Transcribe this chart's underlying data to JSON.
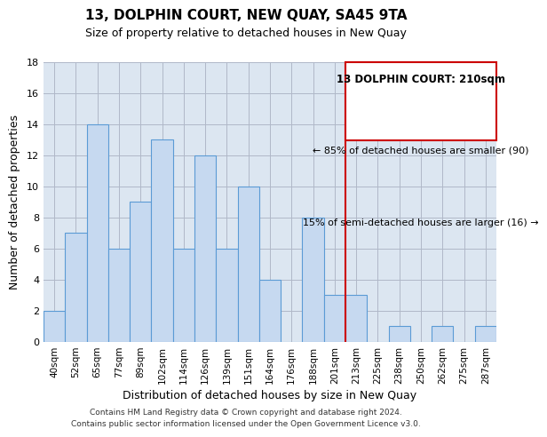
{
  "title": "13, DOLPHIN COURT, NEW QUAY, SA45 9TA",
  "subtitle": "Size of property relative to detached houses in New Quay",
  "xlabel": "Distribution of detached houses by size in New Quay",
  "ylabel": "Number of detached properties",
  "bin_labels": [
    "40sqm",
    "52sqm",
    "65sqm",
    "77sqm",
    "89sqm",
    "102sqm",
    "114sqm",
    "126sqm",
    "139sqm",
    "151sqm",
    "164sqm",
    "176sqm",
    "188sqm",
    "201sqm",
    "213sqm",
    "225sqm",
    "238sqm",
    "250sqm",
    "262sqm",
    "275sqm",
    "287sqm"
  ],
  "bar_heights": [
    2,
    7,
    14,
    6,
    9,
    13,
    6,
    12,
    6,
    10,
    4,
    0,
    8,
    3,
    3,
    0,
    1,
    0,
    1,
    0,
    1
  ],
  "bar_color": "#c6d9f0",
  "bar_edge_color": "#5b9bd5",
  "vline_x_index": 14,
  "vline_color": "#cc0000",
  "ax_facecolor": "#dce6f1",
  "ylim": [
    0,
    18
  ],
  "yticks": [
    0,
    2,
    4,
    6,
    8,
    10,
    12,
    14,
    16,
    18
  ],
  "annotation_title": "13 DOLPHIN COURT: 210sqm",
  "annotation_line1": "← 85% of detached houses are smaller (90)",
  "annotation_line2": "15% of semi-detached houses are larger (16) →",
  "annotation_box_color": "#ffffff",
  "annotation_box_edge": "#cc0000",
  "footer_line1": "Contains HM Land Registry data © Crown copyright and database right 2024.",
  "footer_line2": "Contains public sector information licensed under the Open Government Licence v3.0."
}
